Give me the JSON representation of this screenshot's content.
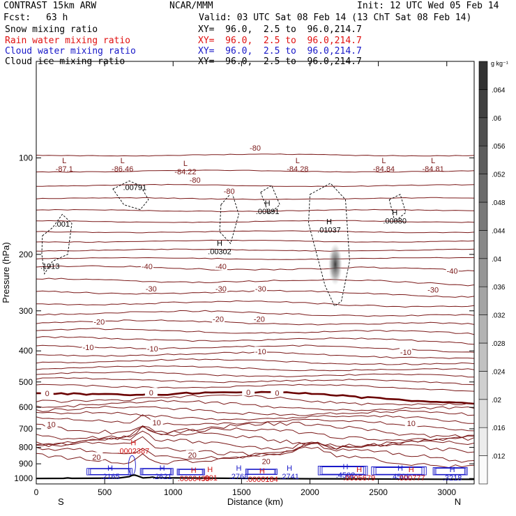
{
  "header": {
    "model": "CONTRAST 15km ARW",
    "org": "NCAR/MMM",
    "init": "Init: 12 UTC Wed 05 Feb 14",
    "fcst_label": "Fcst:",
    "fcst_value": "63 h",
    "valid": "Valid: 03 UTC Sat 08 Feb 14 (13 ChT Sat 08 Feb 14)",
    "fields": [
      {
        "name": "Snow mixing ratio",
        "xy": "XY=  96.0,  2.5 to  96.0,214.7",
        "color": "#000000"
      },
      {
        "name": "Rain water mixing ratio",
        "xy": "XY=  96.0,  2.5 to  96.0,214.7",
        "color": "#e01010"
      },
      {
        "name": "Cloud water mixing ratio",
        "xy": "XY=  96.0,  2.5 to  96.0,214.7",
        "color": "#1818c8"
      },
      {
        "name": "Cloud ice mixing ratio",
        "xy": "XY=  96.0,  2.5 to  96.0,214.7",
        "color": "#000000"
      }
    ]
  },
  "colors": {
    "temperature": "#7a1818",
    "zero_line": "#6a0000",
    "cloud_water": "#1818c8",
    "rain_water": "#d01010",
    "snow": "#000000",
    "terrain": "#000000"
  },
  "chart_data": {
    "type": "contour-cross-section",
    "xlabel": "Distance (km)",
    "ylabel": "Pressure (hPa)",
    "xlim": [
      0,
      3200
    ],
    "ylim": [
      1040,
      50
    ],
    "y_scale": "log",
    "x_ticks": [
      0,
      500,
      1000,
      1500,
      2000,
      2500,
      3000
    ],
    "y_ticks": [
      100,
      200,
      300,
      400,
      500,
      600,
      700,
      800,
      900,
      1000
    ],
    "endpoints": {
      "left": "S",
      "right": "N"
    },
    "colorbar": {
      "units": "g kg⁻¹",
      "ticks": [
        ".012",
        ".016",
        ".02",
        ".024",
        ".028",
        ".032",
        ".036",
        ".04",
        ".044",
        ".048",
        ".052",
        ".056",
        ".06",
        ".064"
      ]
    },
    "temperature_contours": [
      {
        "value": "-80",
        "label_x": [
          1600,
          1160,
          1410
        ],
        "label_p": [
          93,
          117,
          127
        ]
      },
      {
        "value": "-40",
        "label_x": [
          810,
          1350,
          3040
        ],
        "label_p": [
          218,
          218,
          225
        ]
      },
      {
        "value": "-30",
        "label_x": [
          840,
          1350,
          1640,
          2900
        ],
        "label_p": [
          256,
          256,
          256,
          258
        ]
      },
      {
        "value": "-20",
        "label_x": [
          460,
          1330,
          1630
        ],
        "label_p": [
          325,
          318,
          318
        ]
      },
      {
        "value": "-10",
        "label_x": [
          380,
          850,
          1640,
          2700
        ],
        "label_p": [
          390,
          394,
          402,
          404
        ]
      },
      {
        "value": "0",
        "label_x": [
          80,
          840,
          1550,
          1760
        ],
        "label_p": [
          542,
          540,
          538,
          541
        ]
      },
      {
        "value": "10",
        "label_x": [
          110,
          880,
          2740
        ],
        "label_p": [
          677,
          669,
          672
        ]
      },
      {
        "value": "20",
        "label_x": [
          440,
          1140,
          1680
        ],
        "label_p": [
          857,
          845,
          883
        ]
      }
    ],
    "extrema": [
      {
        "kind": "L",
        "field": "temperature",
        "value": "-87.1",
        "x": 205,
        "p": 104
      },
      {
        "kind": "L",
        "field": "temperature",
        "value": "-86.46",
        "x": 630,
        "p": 104
      },
      {
        "kind": "L",
        "field": "temperature",
        "value": "-84.22",
        "x": 1090,
        "p": 106
      },
      {
        "kind": "L",
        "field": "temperature",
        "value": "-84.28",
        "x": 1910,
        "p": 104
      },
      {
        "kind": "L",
        "field": "temperature",
        "value": "-84.84",
        "x": 2540,
        "p": 104
      },
      {
        "kind": "L",
        "field": "temperature",
        "value": "-84.81",
        "x": 2900,
        "p": 104
      },
      {
        "kind": "H",
        "field": "snow",
        "value": ".00891",
        "x": 1690,
        "p": 141
      },
      {
        "kind": "H",
        "field": "snow",
        "value": ".01037",
        "x": 2140,
        "p": 161
      },
      {
        "kind": "H",
        "field": "snow",
        "value": ".00080",
        "x": 2620,
        "p": 151
      },
      {
        "kind": "H",
        "field": "snow",
        "value": ".00302",
        "x": 1340,
        "p": 188
      },
      {
        "kind": "H",
        "field": "rain",
        "value": ".0002387",
        "x": 710,
        "p": 787
      },
      {
        "kind": "H",
        "field": "cloud_water",
        "value": ".2165",
        "x": 540,
        "p": 945
      },
      {
        "kind": "H",
        "field": "cloud_water",
        "value": ".2621",
        "x": 920,
        "p": 945
      },
      {
        "kind": "H",
        "field": "cloud_water",
        "value": ".2768",
        "x": 1480,
        "p": 945
      },
      {
        "kind": "H",
        "field": "cloud_water",
        "value": ".2741",
        "x": 1850,
        "p": 945
      },
      {
        "kind": "H",
        "field": "cloud_water",
        "value": ".4502",
        "x": 2260,
        "p": 937
      },
      {
        "kind": "H",
        "field": "cloud_water",
        "value": ".4501",
        "x": 2660,
        "p": 945
      },
      {
        "kind": "H",
        "field": "cloud_water",
        "value": ".3218",
        "x": 3040,
        "p": 955
      },
      {
        "kind": "H",
        "field": "rain",
        "value": ".0000438",
        "x": 1150,
        "p": 961
      },
      {
        "kind": "H",
        "field": "rain",
        "value": ".001",
        "x": 1270,
        "p": 955
      },
      {
        "kind": "H",
        "field": "rain",
        "value": ".0000184",
        "x": 1650,
        "p": 965
      },
      {
        "kind": "H",
        "field": "rain",
        "value": ".0005679",
        "x": 2360,
        "p": 955
      },
      {
        "kind": "H",
        "field": "rain",
        "value": ".000777",
        "x": 2740,
        "p": 955
      }
    ],
    "snow_labels": [
      {
        "value": ".00791",
        "x": 720,
        "p": 126
      },
      {
        "value": ".001",
        "x": 190,
        "p": 164
      },
      {
        "value": ".1913",
        "x": 100,
        "p": 222
      }
    ],
    "terrain_profile": {
      "x": [
        0,
        200,
        230,
        260,
        600,
        680,
        700,
        720,
        740,
        780,
        830,
        850,
        870,
        1200,
        1600,
        2000,
        2400,
        2800,
        3200
      ],
      "p": [
        1000,
        999,
        996,
        999,
        997,
        987,
        978,
        976,
        982,
        996,
        993,
        990,
        995,
        997,
        1000,
        1002,
        1003,
        1005,
        1006
      ]
    }
  }
}
